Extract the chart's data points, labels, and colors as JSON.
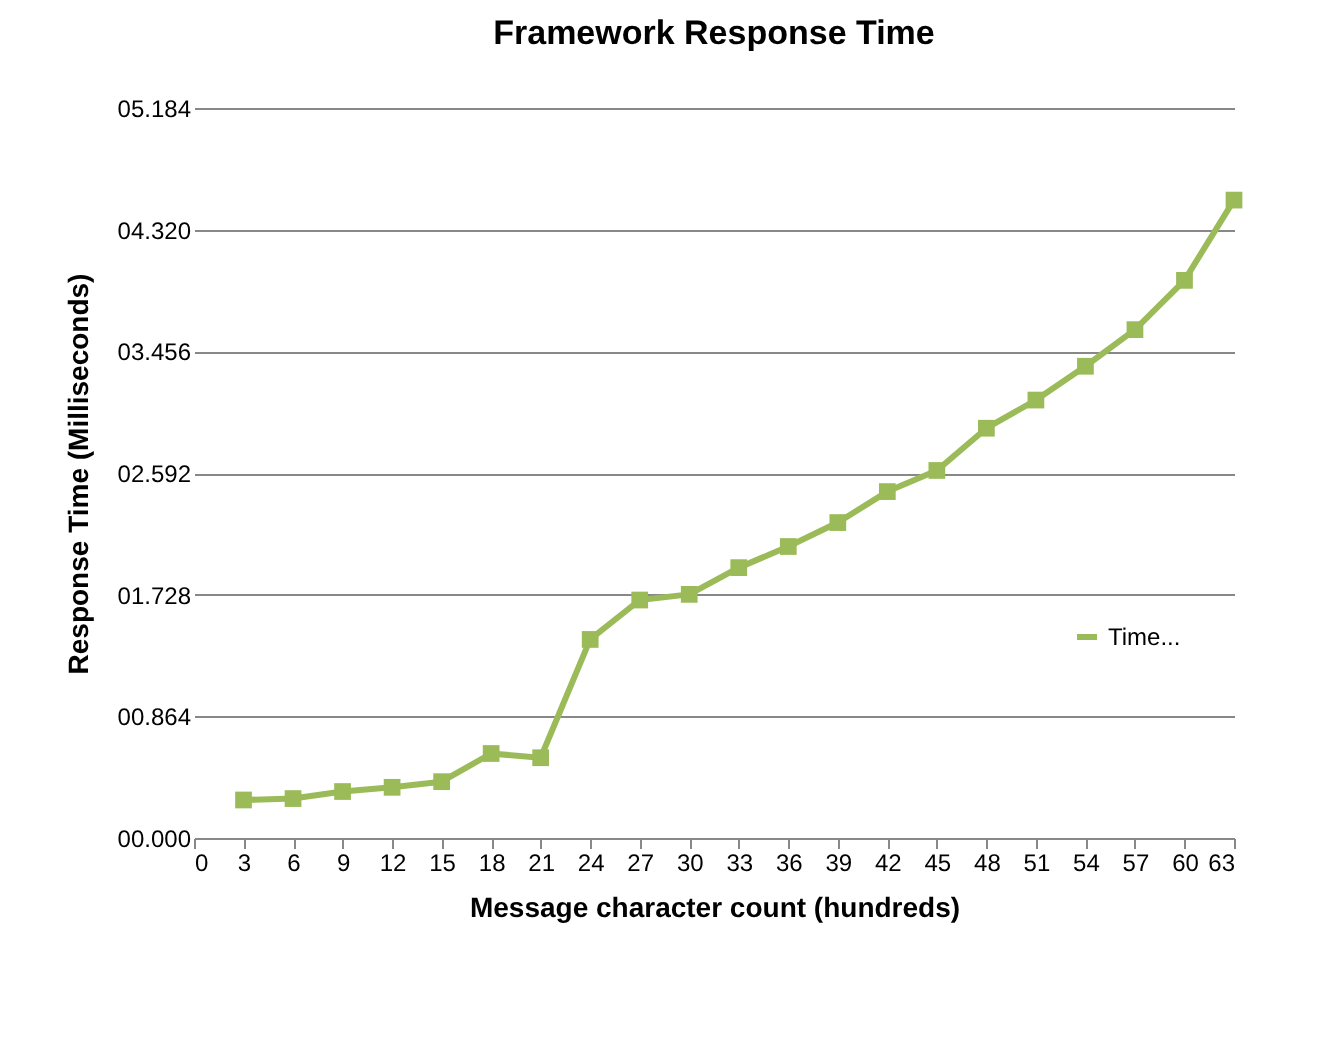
{
  "chart_data": {
    "type": "line",
    "title": "Framework Response Time",
    "xlabel": "Message character count (hundreds)",
    "ylabel": "Response Time (Milliseconds)",
    "x": [
      3,
      6,
      9,
      12,
      15,
      18,
      21,
      24,
      27,
      30,
      33,
      36,
      39,
      42,
      45,
      48,
      51,
      54,
      57,
      60,
      63
    ],
    "series": [
      {
        "name": "Time...",
        "color": "#9bbb59",
        "values": [
          0.27,
          0.28,
          0.33,
          0.36,
          0.4,
          0.6,
          0.57,
          1.41,
          1.69,
          1.73,
          1.92,
          2.07,
          2.24,
          2.46,
          2.61,
          2.91,
          3.11,
          3.35,
          3.61,
          3.96,
          4.53
        ]
      }
    ],
    "xlim": [
      0,
      63
    ],
    "xticks": [
      0,
      3,
      6,
      9,
      12,
      15,
      18,
      21,
      24,
      27,
      30,
      33,
      36,
      39,
      42,
      45,
      48,
      51,
      54,
      57,
      60,
      63
    ],
    "ylim": [
      0,
      5.184
    ],
    "yticks": [
      {
        "value": 0,
        "label": "00.000"
      },
      {
        "value": 0.864,
        "label": "00.864"
      },
      {
        "value": 1.728,
        "label": "01.728"
      },
      {
        "value": 2.592,
        "label": "02.592"
      },
      {
        "value": 3.456,
        "label": "03.456"
      },
      {
        "value": 4.32,
        "label": "04.320"
      },
      {
        "value": 5.184,
        "label": "05.184"
      }
    ],
    "grid": "y",
    "legend": "right",
    "marker": "square",
    "line_style": "solid"
  }
}
